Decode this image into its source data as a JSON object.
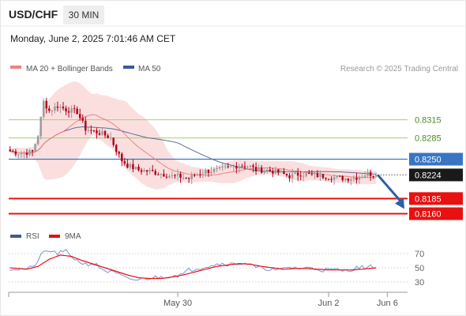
{
  "header": {
    "pair": "USD/CHF",
    "timeframe": "30 MIN",
    "datetime": "Monday, June 2, 2025 7:01:46 AM CET",
    "copyright": "Research © 2025 Trading Central"
  },
  "legend": {
    "bb_label": "MA 20 + Bollinger Bands",
    "ma50_label": "MA 50",
    "rsi_label": "RSI",
    "rsi_ma_label": "9MA"
  },
  "colors": {
    "bull": "#9a9a9a",
    "bear": "#b00018",
    "band_fill": "#fbdcdc",
    "ma20": "#f08080",
    "ma50": "#5b6d9b",
    "resistance": "#a3cf7a",
    "pivot": "#3a75c4",
    "support": "#e81010",
    "arrow": "#2f5fa6",
    "current": "#1a1a1a",
    "rsi": "#7a8fe0",
    "rsi_ma": "#e81010"
  },
  "chart_data": {
    "type": "candlestick",
    "ylim": [
      0.8145,
      0.8385
    ],
    "levels": [
      {
        "value": 0.8315,
        "label": "0.8315",
        "kind": "resistance"
      },
      {
        "value": 0.8285,
        "label": "0.8285",
        "kind": "resistance"
      },
      {
        "value": 0.825,
        "label": "0.8250",
        "kind": "pivot"
      },
      {
        "value": 0.8224,
        "label": "0.8224",
        "kind": "current"
      },
      {
        "value": 0.8185,
        "label": "0.8185",
        "kind": "support"
      },
      {
        "value": 0.816,
        "label": "0.8160",
        "kind": "support"
      }
    ],
    "x_ticks": [
      {
        "index": 60,
        "label": "May 30"
      },
      {
        "index": 114,
        "label": "Jun 2"
      },
      {
        "index": 135,
        "label": "Jun 6"
      }
    ],
    "candle_count": 132,
    "anchors": [
      [
        0,
        0.8263
      ],
      [
        4,
        0.826
      ],
      [
        8,
        0.8262
      ],
      [
        10,
        0.829
      ],
      [
        12,
        0.8345
      ],
      [
        14,
        0.833
      ],
      [
        17,
        0.8338
      ],
      [
        20,
        0.8332
      ],
      [
        24,
        0.8328
      ],
      [
        27,
        0.83
      ],
      [
        30,
        0.8296
      ],
      [
        33,
        0.8292
      ],
      [
        36,
        0.8285
      ],
      [
        38,
        0.8265
      ],
      [
        40,
        0.8248
      ],
      [
        42,
        0.824
      ],
      [
        46,
        0.8232
      ],
      [
        50,
        0.823
      ],
      [
        54,
        0.8226
      ],
      [
        58,
        0.8222
      ],
      [
        60,
        0.8222
      ],
      [
        62,
        0.822
      ],
      [
        64,
        0.8218
      ],
      [
        66,
        0.8224
      ],
      [
        70,
        0.823
      ],
      [
        74,
        0.8232
      ],
      [
        78,
        0.8236
      ],
      [
        82,
        0.824
      ],
      [
        86,
        0.8238
      ],
      [
        88,
        0.8232
      ],
      [
        92,
        0.8232
      ],
      [
        96,
        0.8228
      ],
      [
        100,
        0.8222
      ],
      [
        104,
        0.8226
      ],
      [
        108,
        0.8224
      ],
      [
        112,
        0.8222
      ],
      [
        116,
        0.822
      ],
      [
        120,
        0.8218
      ],
      [
        124,
        0.822
      ],
      [
        128,
        0.8226
      ],
      [
        131,
        0.8224
      ]
    ],
    "forecast": {
      "from": 0.8224,
      "to": 0.8173
    },
    "rsi": {
      "ticks": [
        30,
        50,
        70
      ],
      "anchors": [
        [
          0,
          49
        ],
        [
          4,
          48
        ],
        [
          8,
          50
        ],
        [
          10,
          60
        ],
        [
          12,
          72
        ],
        [
          14,
          74
        ],
        [
          17,
          70
        ],
        [
          20,
          73
        ],
        [
          24,
          60
        ],
        [
          27,
          55
        ],
        [
          30,
          56
        ],
        [
          34,
          46
        ],
        [
          38,
          42
        ],
        [
          42,
          34
        ],
        [
          46,
          33
        ],
        [
          50,
          36
        ],
        [
          54,
          37
        ],
        [
          58,
          39
        ],
        [
          62,
          41
        ],
        [
          64,
          47
        ],
        [
          68,
          50
        ],
        [
          72,
          54
        ],
        [
          76,
          56
        ],
        [
          80,
          55
        ],
        [
          84,
          57
        ],
        [
          86,
          54
        ],
        [
          88,
          50
        ],
        [
          92,
          49
        ],
        [
          96,
          46
        ],
        [
          100,
          51
        ],
        [
          104,
          49
        ],
        [
          108,
          50
        ],
        [
          112,
          47
        ],
        [
          116,
          47
        ],
        [
          120,
          46
        ],
        [
          124,
          50
        ],
        [
          128,
          51
        ],
        [
          131,
          52
        ]
      ],
      "ma_anchors": [
        [
          0,
          50
        ],
        [
          6,
          48
        ],
        [
          10,
          52
        ],
        [
          14,
          62
        ],
        [
          18,
          68
        ],
        [
          22,
          66
        ],
        [
          26,
          60
        ],
        [
          30,
          55
        ],
        [
          34,
          50
        ],
        [
          38,
          45
        ],
        [
          42,
          40
        ],
        [
          46,
          36
        ],
        [
          50,
          35
        ],
        [
          54,
          35
        ],
        [
          58,
          37
        ],
        [
          62,
          40
        ],
        [
          66,
          44
        ],
        [
          70,
          48
        ],
        [
          74,
          52
        ],
        [
          78,
          54
        ],
        [
          82,
          56
        ],
        [
          86,
          55
        ],
        [
          90,
          52
        ],
        [
          94,
          50
        ],
        [
          98,
          48
        ],
        [
          102,
          49
        ],
        [
          106,
          49
        ],
        [
          110,
          48
        ],
        [
          114,
          47
        ],
        [
          118,
          47
        ],
        [
          122,
          47
        ],
        [
          126,
          48
        ],
        [
          131,
          50
        ]
      ]
    }
  }
}
